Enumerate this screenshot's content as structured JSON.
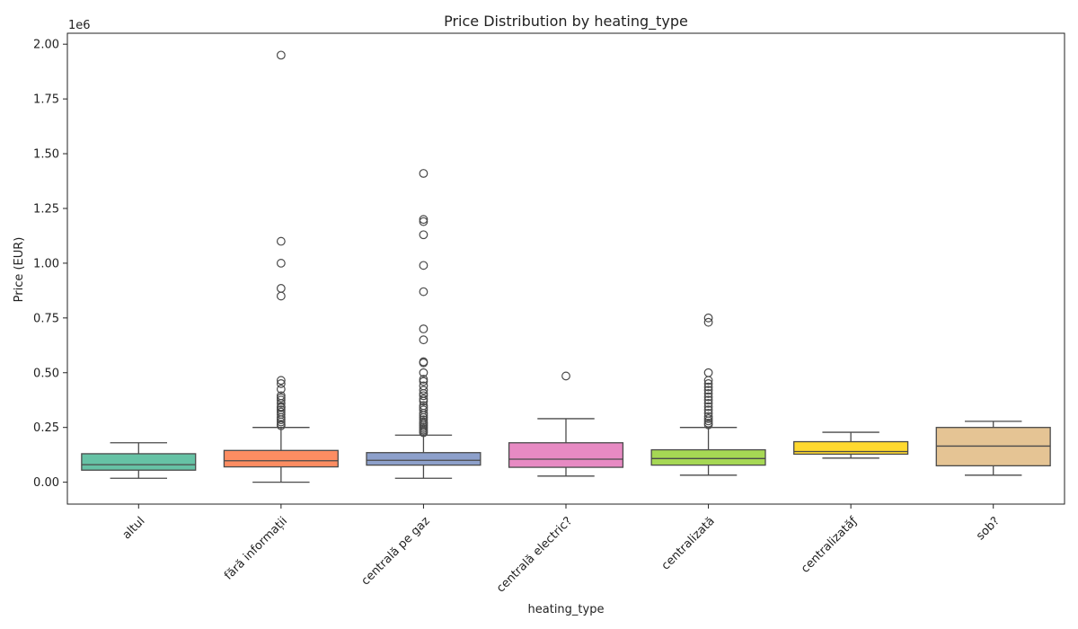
{
  "chart_data": {
    "type": "box",
    "title": "Price Distribution by heating_type",
    "xlabel": "heating_type",
    "ylabel": "Price (EUR)",
    "y_offset_label": "1e6",
    "ylim": [
      -0.1,
      2.05
    ],
    "yticks": [
      0.0,
      0.25,
      0.5,
      0.75,
      1.0,
      1.25,
      1.5,
      1.75,
      2.0
    ],
    "ytick_labels": [
      "0.00",
      "0.25",
      "0.50",
      "0.75",
      "1.00",
      "1.25",
      "1.50",
      "1.75",
      "2.00"
    ],
    "grid": false,
    "categories": [
      "altul",
      "fără informații",
      "centrală pe gaz",
      "centrală electric?",
      "centralizată",
      "centralizatăƒ",
      "sob?"
    ],
    "boxes": [
      {
        "category": "altul",
        "color": "#66c2a5",
        "whisker_low": 0.018,
        "q1": 0.055,
        "median": 0.08,
        "q3": 0.13,
        "whisker_high": 0.18,
        "fliers": []
      },
      {
        "category": "fără informații",
        "color": "#fc8d62",
        "whisker_low": 0.0,
        "q1": 0.07,
        "median": 0.098,
        "q3": 0.145,
        "whisker_high": 0.25,
        "fliers": [
          1.95,
          1.1,
          1.0,
          0.885,
          0.85,
          0.465,
          0.45,
          0.425,
          0.395,
          0.385,
          0.375,
          0.36,
          0.345,
          0.34,
          0.33,
          0.32,
          0.31,
          0.295,
          0.285,
          0.275,
          0.265,
          0.258
        ]
      },
      {
        "category": "centrală pe gaz",
        "color": "#8da0cb",
        "whisker_low": 0.018,
        "q1": 0.078,
        "median": 0.1,
        "q3": 0.135,
        "whisker_high": 0.215,
        "fliers": [
          1.41,
          1.2,
          1.19,
          1.13,
          0.99,
          0.87,
          0.7,
          0.65,
          0.55,
          0.545,
          0.5,
          0.47,
          0.46,
          0.44,
          0.42,
          0.405,
          0.395,
          0.38,
          0.37,
          0.35,
          0.34,
          0.33,
          0.315,
          0.305,
          0.295,
          0.285,
          0.275,
          0.268,
          0.26,
          0.252,
          0.245,
          0.238,
          0.232,
          0.226
        ]
      },
      {
        "category": "centrală electric?",
        "color": "#e78ac3",
        "whisker_low": 0.028,
        "q1": 0.068,
        "median": 0.105,
        "q3": 0.18,
        "whisker_high": 0.29,
        "fliers": [
          0.485
        ]
      },
      {
        "category": "centralizată",
        "color": "#a6d854",
        "whisker_low": 0.032,
        "q1": 0.078,
        "median": 0.108,
        "q3": 0.148,
        "whisker_high": 0.25,
        "fliers": [
          0.75,
          0.73,
          0.5,
          0.465,
          0.45,
          0.435,
          0.42,
          0.405,
          0.39,
          0.375,
          0.36,
          0.345,
          0.33,
          0.315,
          0.3,
          0.29,
          0.28,
          0.27,
          0.262
        ]
      },
      {
        "category": "centralizatăƒ",
        "color": "#ffd92f",
        "whisker_low": 0.11,
        "q1": 0.128,
        "median": 0.14,
        "q3": 0.185,
        "whisker_high": 0.228,
        "fliers": []
      },
      {
        "category": "sob?",
        "color": "#e5c494",
        "whisker_low": 0.032,
        "q1": 0.075,
        "median": 0.165,
        "q3": 0.25,
        "whisker_high": 0.278,
        "fliers": []
      }
    ]
  }
}
